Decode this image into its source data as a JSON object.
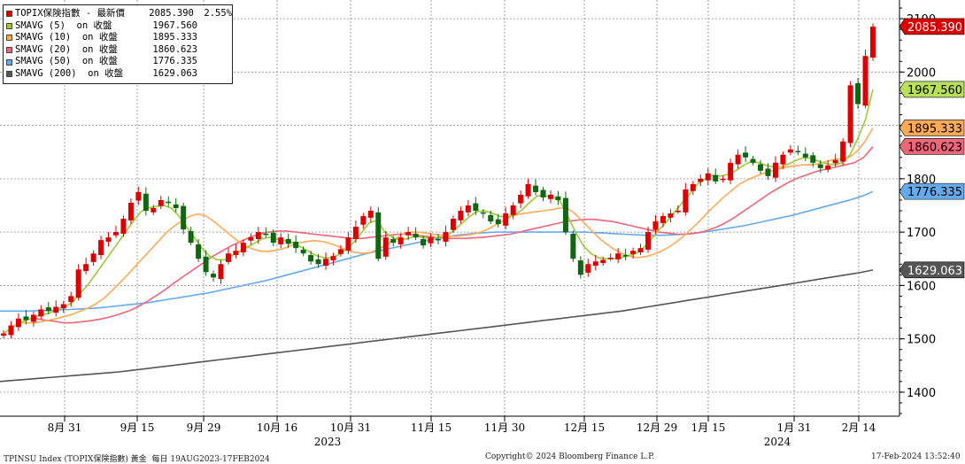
{
  "chart_data": {
    "type": "candlestick",
    "instrument": "TOPIX保険指數",
    "x_tick_labels": [
      "8月 31",
      "9月 15",
      "9月 29",
      "10月 16",
      "10月 31",
      "11月 15",
      "11月 30",
      "12月 15",
      "12月 29",
      "1月 15",
      "1月 31",
      "2月 14"
    ],
    "year_labels": [
      "2023",
      "2024"
    ],
    "y_ticks": [
      1400,
      1500,
      1600,
      1700,
      1800,
      1900,
      2000,
      2100
    ],
    "ylim": [
      1355,
      2135
    ],
    "grid": true,
    "legend_position": "top-left",
    "legend": [
      {
        "name": "TOPIX保険指數 - 最新價",
        "value": "2085.390",
        "change": "2.55%",
        "color": "#dd0000"
      },
      {
        "name": "SMAVG (5)  on 收盤",
        "value": "1967.560",
        "color": "#99cc33"
      },
      {
        "name": "SMAVG (10)  on 收盤",
        "value": "1895.333",
        "color": "#ffaa55"
      },
      {
        "name": "SMAVG (20)  on 收盤",
        "value": "1860.623",
        "color": "#ee6677"
      },
      {
        "name": "SMAVG (50)  on 收盤",
        "value": "1776.335",
        "color": "#66aaee"
      },
      {
        "name": "SMAVG (200)  on 收盤",
        "value": "1629.063",
        "color": "#555555"
      }
    ],
    "price_tags": [
      {
        "value": "2085.390",
        "color": "#dd0000",
        "text_color": "#ffffff"
      },
      {
        "value": "1967.560",
        "color": "#b8e05a",
        "text_color": "#000000"
      },
      {
        "value": "1895.333",
        "color": "#ffaa55",
        "text_color": "#000000"
      },
      {
        "value": "1860.623",
        "color": "#ee6677",
        "text_color": "#000000"
      },
      {
        "value": "1776.335",
        "color": "#66aaee",
        "text_color": "#000000"
      },
      {
        "value": "1629.063",
        "color": "#555555",
        "text_color": "#ffffff"
      }
    ],
    "candles_close": [
      1510,
      1525,
      1538,
      1535,
      1545,
      1555,
      1552,
      1560,
      1565,
      1580,
      1630,
      1640,
      1660,
      1685,
      1690,
      1700,
      1725,
      1755,
      1775,
      1740,
      1745,
      1760,
      1755,
      1745,
      1705,
      1680,
      1650,
      1625,
      1615,
      1640,
      1660,
      1665,
      1680,
      1690,
      1700,
      1695,
      1680,
      1690,
      1678,
      1670,
      1660,
      1645,
      1640,
      1650,
      1655,
      1668,
      1690,
      1710,
      1730,
      1740,
      1650,
      1690,
      1680,
      1690,
      1700,
      1690,
      1675,
      1690,
      1685,
      1700,
      1725,
      1740,
      1750,
      1740,
      1735,
      1720,
      1715,
      1735,
      1750,
      1770,
      1790,
      1775,
      1765,
      1770,
      1760,
      1700,
      1650,
      1620,
      1640,
      1645,
      1648,
      1652,
      1660,
      1655,
      1665,
      1670,
      1700,
      1720,
      1730,
      1735,
      1740,
      1780,
      1790,
      1800,
      1810,
      1795,
      1800,
      1830,
      1845,
      1840,
      1830,
      1815,
      1805,
      1830,
      1845,
      1855,
      1850,
      1840,
      1830,
      1820,
      1825,
      1835,
      1870,
      1975,
      1940,
      2030,
      2085
    ],
    "sma5": [
      1510,
      1520,
      1530,
      1535,
      1540,
      1545,
      1548,
      1555,
      1560,
      1568,
      1585,
      1600,
      1620,
      1640,
      1660,
      1680,
      1700,
      1720,
      1738,
      1745,
      1748,
      1750,
      1745,
      1730,
      1710,
      1690,
      1670,
      1655,
      1648,
      1648,
      1656,
      1664,
      1672,
      1680,
      1688,
      1690,
      1686,
      1684,
      1680,
      1672,
      1664,
      1656,
      1652,
      1652,
      1658,
      1668,
      1682,
      1700,
      1718,
      1722,
      1700,
      1690,
      1685,
      1688,
      1692,
      1690,
      1688,
      1690,
      1692,
      1702,
      1715,
      1728,
      1738,
      1740,
      1736,
      1730,
      1728,
      1732,
      1742,
      1756,
      1768,
      1768,
      1765,
      1758,
      1730,
      1700,
      1675,
      1660,
      1652,
      1650,
      1650,
      1652,
      1656,
      1660,
      1672,
      1688,
      1705,
      1720,
      1738,
      1755,
      1772,
      1790,
      1800,
      1806,
      1805,
      1808,
      1815,
      1825,
      1832,
      1830,
      1825,
      1822,
      1822,
      1828,
      1835,
      1840,
      1838,
      1832,
      1828,
      1826,
      1830,
      1845,
      1875,
      1910,
      1967
    ],
    "sma10": [
      1530,
      1530,
      1530,
      1532,
      1535,
      1538,
      1542,
      1546,
      1552,
      1558,
      1566,
      1576,
      1590,
      1605,
      1620,
      1636,
      1652,
      1668,
      1684,
      1700,
      1712,
      1722,
      1730,
      1734,
      1730,
      1720,
      1708,
      1696,
      1684,
      1674,
      1668,
      1664,
      1664,
      1666,
      1670,
      1676,
      1680,
      1683,
      1684,
      1682,
      1678,
      1672,
      1666,
      1662,
      1660,
      1662,
      1668,
      1676,
      1686,
      1696,
      1700,
      1700,
      1698,
      1696,
      1694,
      1692,
      1692,
      1694,
      1696,
      1700,
      1706,
      1714,
      1722,
      1730,
      1734,
      1736,
      1738,
      1740,
      1742,
      1745,
      1745,
      1735,
      1720,
      1705,
      1690,
      1678,
      1668,
      1660,
      1655,
      1652,
      1654,
      1658,
      1664,
      1672,
      1682,
      1694,
      1708,
      1722,
      1738,
      1752,
      1766,
      1778,
      1790,
      1798,
      1804,
      1810,
      1814,
      1818,
      1822,
      1824,
      1826,
      1826,
      1828,
      1832,
      1836,
      1838,
      1840,
      1852,
      1870,
      1895
    ],
    "sma20": [
      1538,
      1535,
      1533,
      1530,
      1530,
      1532,
      1534,
      1537,
      1541,
      1546,
      1552,
      1560,
      1570,
      1581,
      1593,
      1606,
      1618,
      1630,
      1642,
      1654,
      1664,
      1674,
      1682,
      1690,
      1696,
      1700,
      1702,
      1702,
      1700,
      1698,
      1696,
      1694,
      1692,
      1690,
      1688,
      1688,
      1690,
      1692,
      1694,
      1696,
      1696,
      1694,
      1692,
      1690,
      1688,
      1688,
      1688,
      1689,
      1690,
      1692,
      1694,
      1696,
      1700,
      1704,
      1708,
      1712,
      1716,
      1720,
      1722,
      1724,
      1724,
      1722,
      1720,
      1716,
      1712,
      1708,
      1704,
      1700,
      1698,
      1696,
      1696,
      1698,
      1702,
      1708,
      1716,
      1726,
      1738,
      1750,
      1762,
      1774,
      1784,
      1794,
      1802,
      1808,
      1814,
      1818,
      1822,
      1826,
      1830,
      1840,
      1860
    ],
    "sma50": [
      1552,
      1552,
      1552,
      1552,
      1553,
      1553,
      1554,
      1555,
      1556,
      1557,
      1558,
      1560,
      1562,
      1564,
      1566,
      1568,
      1571,
      1574,
      1577,
      1580,
      1583,
      1586,
      1590,
      1594,
      1598,
      1602,
      1606,
      1610,
      1615,
      1620,
      1625,
      1630,
      1635,
      1640,
      1645,
      1650,
      1655,
      1660,
      1664,
      1668,
      1672,
      1676,
      1680,
      1684,
      1688,
      1691,
      1694,
      1696,
      1698,
      1699,
      1700,
      1700,
      1700,
      1700,
      1700,
      1700,
      1700,
      1700,
      1700,
      1700,
      1699,
      1698,
      1697,
      1696,
      1695,
      1694,
      1694,
      1694,
      1695,
      1696,
      1698,
      1700,
      1703,
      1706,
      1709,
      1712,
      1716,
      1720,
      1724,
      1728,
      1732,
      1737,
      1742,
      1747,
      1752,
      1757,
      1762,
      1768,
      1776
    ],
    "sma200": [
      1420,
      1422,
      1424,
      1426,
      1428,
      1430,
      1432,
      1434,
      1436,
      1438,
      1441,
      1444,
      1447,
      1450,
      1453,
      1456,
      1459,
      1462,
      1465,
      1468,
      1471,
      1474,
      1477,
      1480,
      1483,
      1486,
      1489,
      1492,
      1495,
      1498,
      1501,
      1504,
      1507,
      1510,
      1513,
      1516,
      1519,
      1522,
      1525,
      1528,
      1531,
      1534,
      1537,
      1540,
      1543,
      1546,
      1549,
      1552,
      1556,
      1560,
      1564,
      1568,
      1572,
      1576,
      1580,
      1584,
      1588,
      1592,
      1596,
      1600,
      1604,
      1608,
      1612,
      1616,
      1620,
      1624,
      1629
    ]
  },
  "footer": {
    "left": "TPINSU Index (TOPIX保険指數) 黃金  每日 19AUG2023-17FEB2024",
    "center": "Copyright© 2024 Bloomberg Finance L.P.",
    "right": "17-Feb-2024 13:52:40"
  }
}
